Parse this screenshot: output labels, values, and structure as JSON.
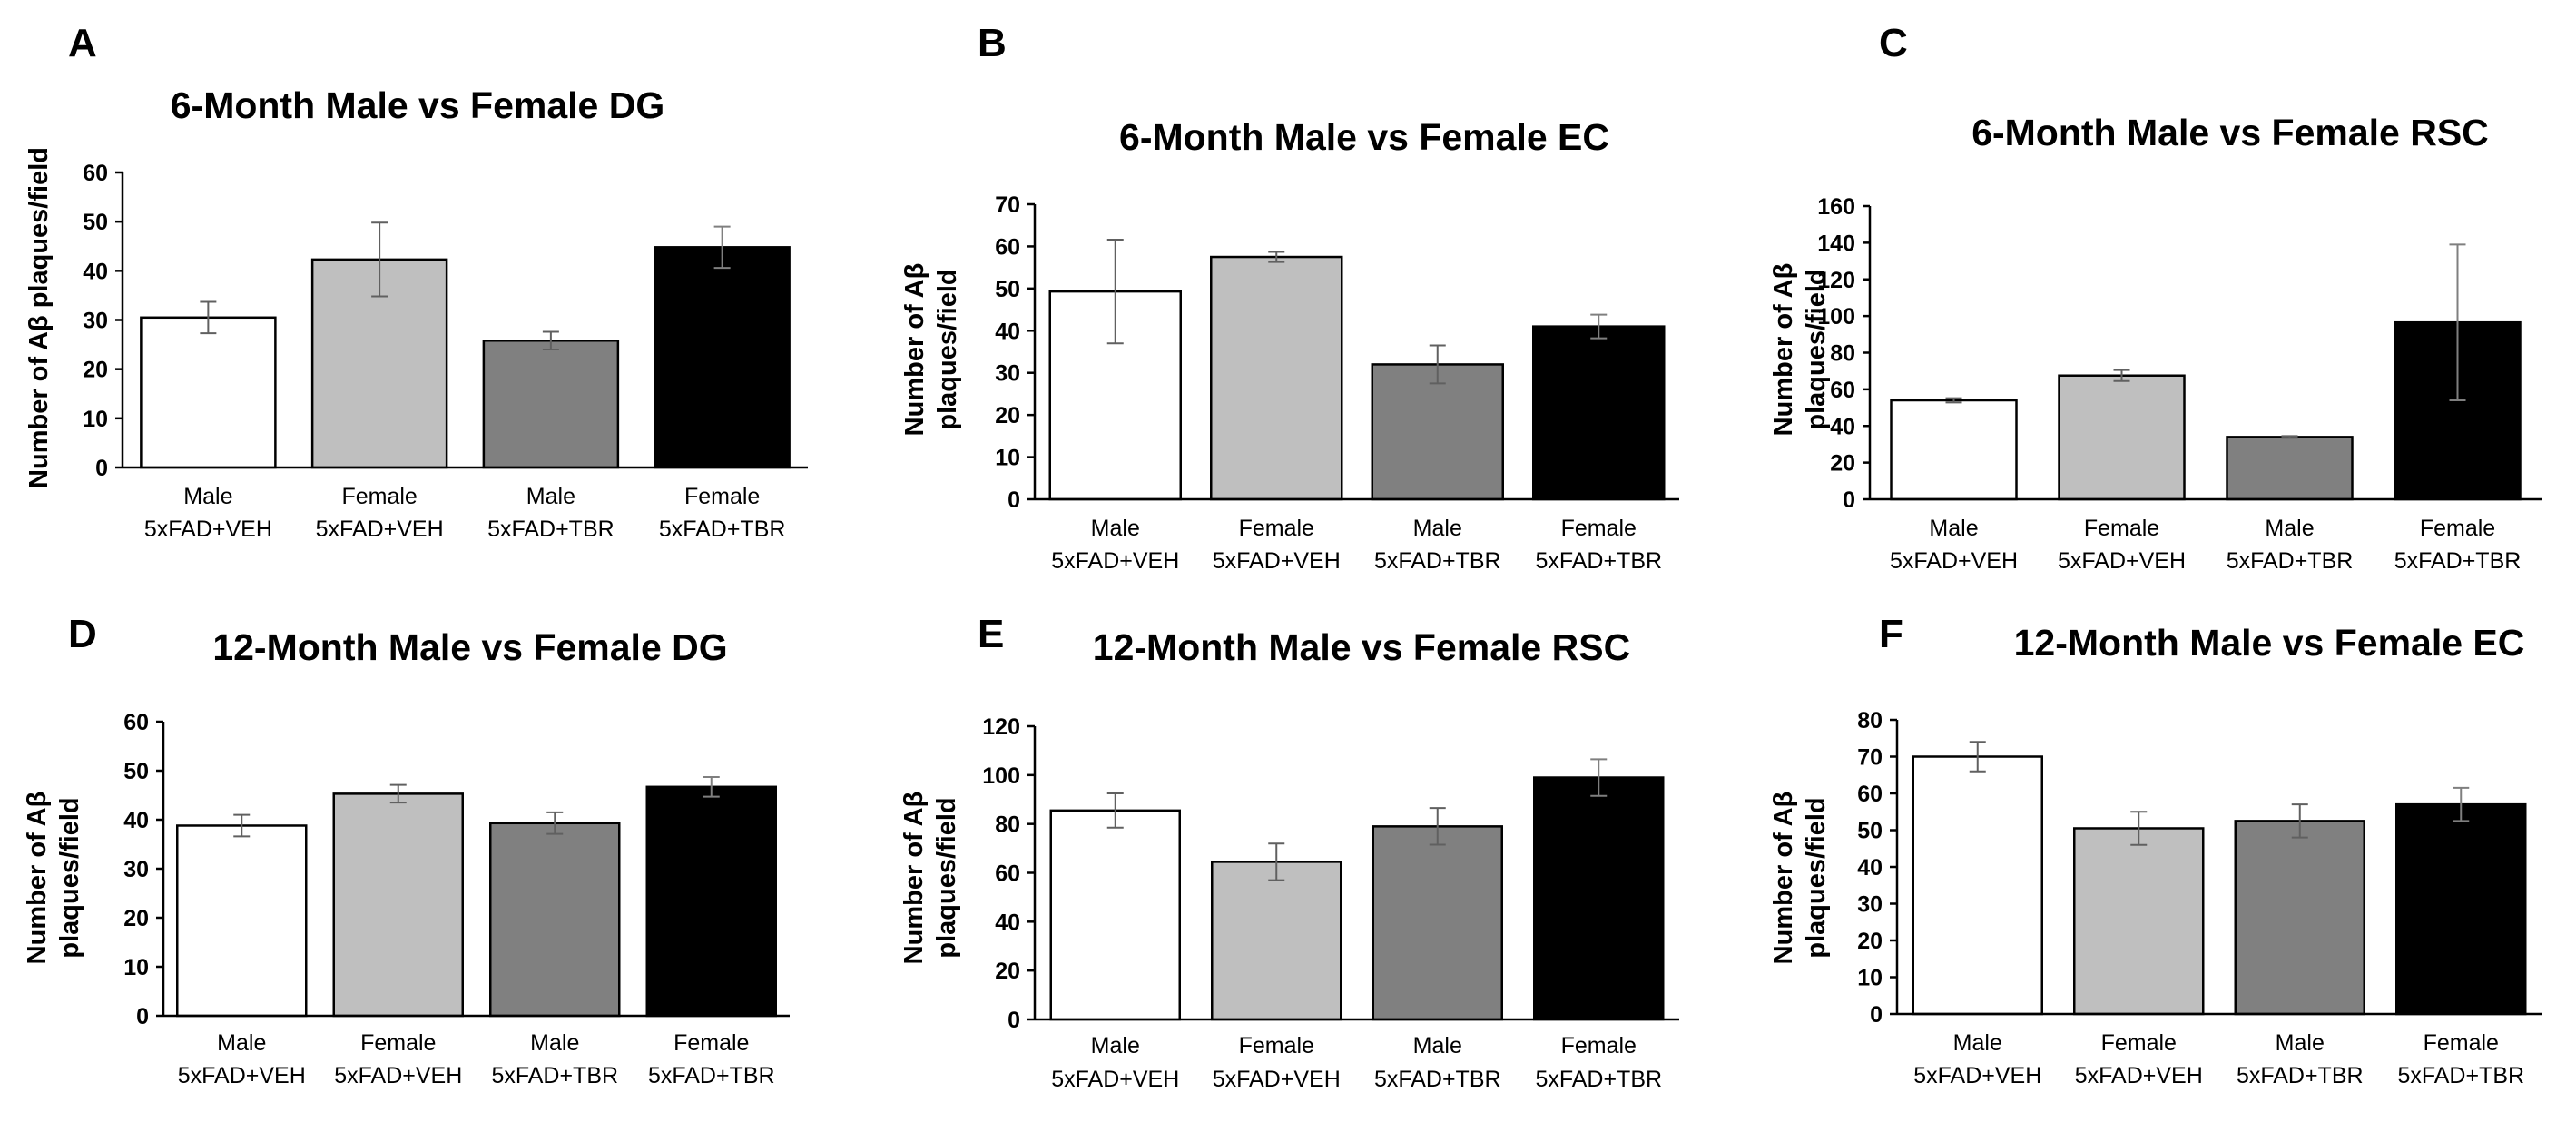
{
  "figure": {
    "category_lines": [
      [
        "Male",
        "5xFAD+VEH"
      ],
      [
        "Female",
        "5xFAD+VEH"
      ],
      [
        "Male",
        "5xFAD+TBR"
      ],
      [
        "Female",
        "5xFAD+TBR"
      ]
    ],
    "bar_colors": [
      "#ffffff",
      "#bfbfbf",
      "#808080",
      "#000000"
    ]
  },
  "chart_data": [
    {
      "panel": "A",
      "type": "bar",
      "title": "6-Month Male vs Female DG",
      "xlabel": "",
      "ylabel": "Number of Aβ plaques/field",
      "categories": [
        "Male 5xFAD+VEH",
        "Female 5xFAD+VEH",
        "Male 5xFAD+TBR",
        "Female 5xFAD+TBR"
      ],
      "values": [
        30.5,
        42.3,
        25.8,
        44.8
      ],
      "errors": [
        3.2,
        7.5,
        1.8,
        4.2
      ],
      "ylim": [
        0,
        60
      ],
      "yticks": [
        0,
        10,
        20,
        30,
        40,
        50,
        60
      ],
      "grid": false
    },
    {
      "panel": "B",
      "type": "bar",
      "title": "6-Month Male vs Female EC",
      "xlabel": "",
      "ylabel": "Number of Aβ plaques/field",
      "categories": [
        "Male 5xFAD+VEH",
        "Female 5xFAD+VEH",
        "Male 5xFAD+TBR",
        "Female 5xFAD+TBR"
      ],
      "values": [
        49.3,
        57.5,
        32.0,
        41.0
      ],
      "errors": [
        12.3,
        1.2,
        4.5,
        2.8
      ],
      "ylim": [
        0,
        70
      ],
      "yticks": [
        0,
        10,
        20,
        30,
        40,
        50,
        60,
        70
      ],
      "grid": false
    },
    {
      "panel": "C",
      "type": "bar",
      "title": "6-Month Male vs Female RSC",
      "xlabel": "",
      "ylabel": "Number of Aβ plaques/field",
      "categories": [
        "Male 5xFAD+VEH",
        "Female 5xFAD+VEH",
        "Male 5xFAD+TBR",
        "Female 5xFAD+TBR"
      ],
      "values": [
        54.0,
        67.5,
        34.0,
        96.5
      ],
      "errors": [
        1.2,
        3.0,
        0.5,
        42.5
      ],
      "ylim": [
        0,
        160
      ],
      "yticks": [
        0,
        20,
        40,
        60,
        80,
        100,
        120,
        140,
        160
      ],
      "grid": false
    },
    {
      "panel": "D",
      "type": "bar",
      "title": "12-Month Male vs Female DG",
      "xlabel": "",
      "ylabel": "Number of Aβ plaques/field",
      "categories": [
        "Male 5xFAD+VEH",
        "Female 5xFAD+VEH",
        "Male 5xFAD+TBR",
        "Female 5xFAD+TBR"
      ],
      "values": [
        38.8,
        45.3,
        39.3,
        46.7
      ],
      "errors": [
        2.2,
        1.8,
        2.2,
        2.0
      ],
      "ylim": [
        0,
        60
      ],
      "yticks": [
        0,
        10,
        20,
        30,
        40,
        50,
        60
      ],
      "grid": false
    },
    {
      "panel": "E",
      "type": "bar",
      "title": "12-Month Male vs Female RSC",
      "xlabel": "",
      "ylabel": "Number of Aβ plaques/field",
      "categories": [
        "Male 5xFAD+VEH",
        "Female 5xFAD+VEH",
        "Male 5xFAD+TBR",
        "Female 5xFAD+TBR"
      ],
      "values": [
        85.5,
        64.5,
        79.0,
        99.0
      ],
      "errors": [
        7.0,
        7.5,
        7.5,
        7.5
      ],
      "ylim": [
        0,
        120
      ],
      "yticks": [
        0,
        20,
        40,
        60,
        80,
        100,
        120
      ],
      "grid": false
    },
    {
      "panel": "F",
      "type": "bar",
      "title": "12-Month Male vs Female EC",
      "xlabel": "",
      "ylabel": "Number of Aβ plaques/field",
      "categories": [
        "Male 5xFAD+VEH",
        "Female 5xFAD+VEH",
        "Male 5xFAD+TBR",
        "Female 5xFAD+TBR"
      ],
      "values": [
        70.0,
        50.5,
        52.5,
        57.0
      ],
      "errors": [
        4.0,
        4.5,
        4.5,
        4.5
      ],
      "ylim": [
        0,
        80
      ],
      "yticks": [
        0,
        10,
        20,
        30,
        40,
        50,
        60,
        70,
        80
      ],
      "grid": false
    }
  ]
}
